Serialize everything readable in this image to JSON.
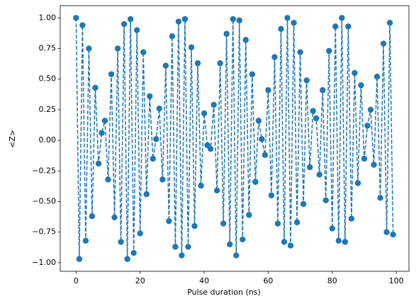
{
  "chart_data": {
    "type": "line",
    "xlabel": "Pulse duration (ns)",
    "ylabel": "<Z>",
    "color": "#1f77b4",
    "line_style": "dashed",
    "marker": "o",
    "x": [
      0,
      1,
      2,
      3,
      4,
      5,
      6,
      7,
      8,
      9,
      10,
      11,
      12,
      13,
      14,
      15,
      16,
      17,
      18,
      19,
      20,
      21,
      22,
      23,
      24,
      25,
      26,
      27,
      28,
      29,
      30,
      31,
      32,
      33,
      34,
      35,
      36,
      37,
      38,
      39,
      40,
      41,
      42,
      43,
      44,
      45,
      46,
      47,
      48,
      49,
      50,
      51,
      52,
      53,
      54,
      55,
      56,
      57,
      58,
      59,
      60,
      61,
      62,
      63,
      64,
      65,
      66,
      67,
      68,
      69,
      70,
      71,
      72,
      73,
      74,
      75,
      76,
      77,
      78,
      79,
      80,
      81,
      82,
      83,
      84,
      85,
      86,
      87,
      88,
      89,
      90,
      91,
      92,
      93,
      94,
      95,
      96,
      97,
      98,
      99
    ],
    "values": [
      1.0,
      -0.97,
      0.94,
      -0.82,
      0.75,
      -0.62,
      0.43,
      -0.19,
      0.06,
      0.16,
      -0.32,
      0.54,
      -0.63,
      0.75,
      -0.83,
      0.95,
      -0.97,
      0.99,
      -0.92,
      0.9,
      -0.76,
      0.72,
      -0.44,
      0.36,
      -0.15,
      0.01,
      0.26,
      -0.32,
      0.61,
      -0.66,
      0.85,
      -0.87,
      0.97,
      -0.94,
      0.99,
      -0.87,
      0.76,
      -0.7,
      0.63,
      -0.37,
      0.22,
      -0.04,
      -0.07,
      0.29,
      -0.41,
      0.63,
      -0.68,
      0.87,
      -0.85,
      0.99,
      -0.94,
      0.98,
      -0.81,
      0.82,
      -0.61,
      0.54,
      -0.34,
      0.16,
      0.01,
      -0.12,
      0.41,
      -0.45,
      0.68,
      -0.68,
      0.91,
      -0.83,
      1.0,
      -0.86,
      0.96,
      -0.67,
      0.72,
      -0.52,
      0.49,
      -0.22,
      0.24,
      0.18,
      -0.28,
      0.41,
      -0.49,
      0.73,
      -0.72,
      0.93,
      -0.82,
      1.0,
      -0.83,
      0.93,
      -0.64,
      0.55,
      -0.35,
      0.45,
      -0.15,
      0.12,
      0.25,
      -0.2,
      0.52,
      -0.47,
      0.79,
      -0.75,
      0.96,
      -0.77
    ],
    "xlim": [
      -4.95,
      103.95
    ],
    "xticks": [
      0,
      20,
      40,
      60,
      80,
      100
    ],
    "ylim": [
      -1.07,
      1.1
    ],
    "yticks": [
      {
        "value": -1,
        "label": "−1.00"
      },
      {
        "value": -0.75,
        "label": "−0.75"
      },
      {
        "value": -0.5,
        "label": "−0.50"
      },
      {
        "value": -0.25,
        "label": "−0.25"
      },
      {
        "value": 0,
        "label": "0.00"
      },
      {
        "value": 0.25,
        "label": "0.25"
      },
      {
        "value": 0.5,
        "label": "0.50"
      },
      {
        "value": 0.75,
        "label": "0.75"
      },
      {
        "value": 1,
        "label": "1.00"
      }
    ]
  }
}
